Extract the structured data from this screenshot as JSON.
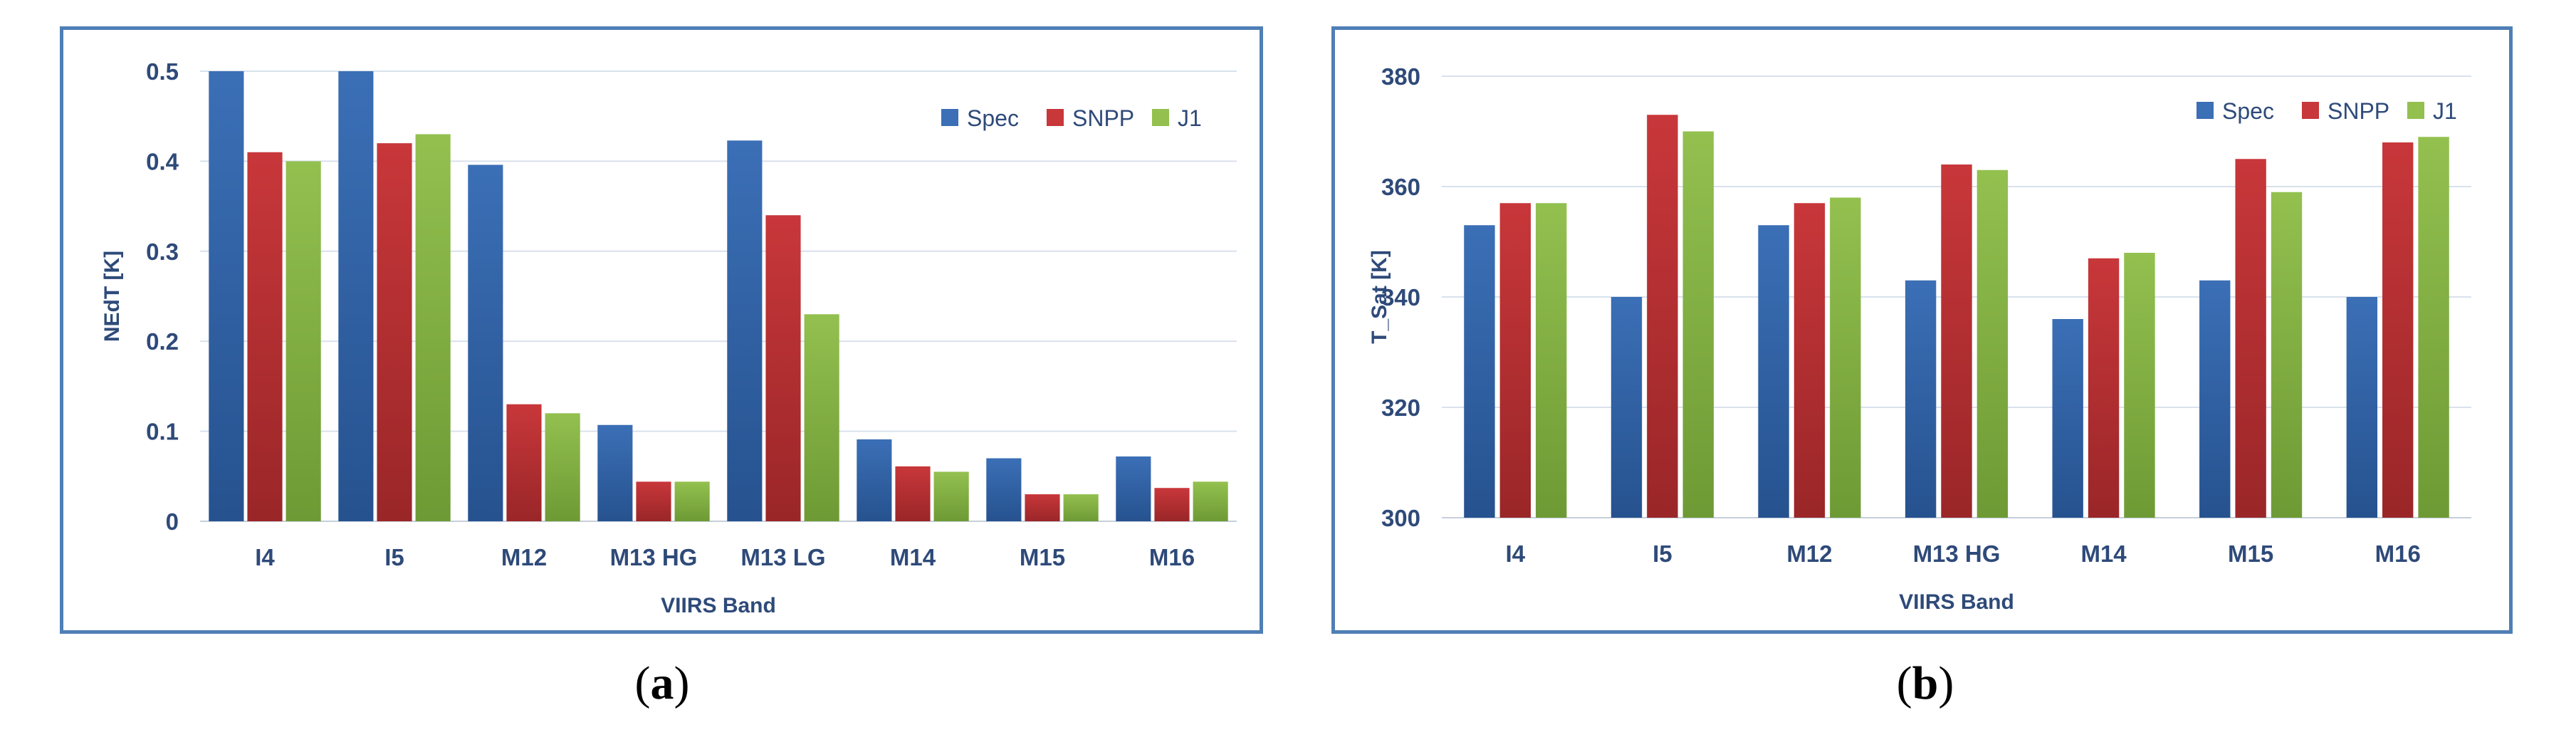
{
  "colors": {
    "spec": "#3b6fb6",
    "spec_dark": "#26528f",
    "snpp": "#c8373a",
    "snpp_dark": "#9a2628",
    "j1": "#93c04f",
    "j1_dark": "#6e9a35",
    "grid": "#d9e1ec",
    "frame": "#4f7fb5",
    "text": "#2e4a79"
  },
  "captions": {
    "a": "a",
    "b": "b"
  },
  "chart_data": [
    {
      "type": "bar",
      "title": "",
      "xlabel": "VIIRS Band",
      "ylabel": "NEdT [K]",
      "categories": [
        "I4",
        "I5",
        "M12",
        "M13 HG",
        "M13 LG",
        "M14",
        "M15",
        "M16"
      ],
      "series": [
        {
          "name": "Spec",
          "values": [
            0.5,
            0.5,
            0.396,
            0.107,
            0.423,
            0.091,
            0.07,
            0.072
          ]
        },
        {
          "name": "SNPP",
          "values": [
            0.41,
            0.42,
            0.13,
            0.044,
            0.34,
            0.061,
            0.03,
            0.037
          ]
        },
        {
          "name": "J1",
          "values": [
            0.4,
            0.43,
            0.12,
            0.044,
            0.23,
            0.055,
            0.03,
            0.044
          ]
        }
      ],
      "ylim": [
        0,
        0.5
      ],
      "yticks": [
        "0",
        "0.1",
        "0.2",
        "0.3",
        "0.4",
        "0.5"
      ],
      "ytick_values": [
        0,
        0.1,
        0.2,
        0.3,
        0.4,
        0.5
      ],
      "legend": "top-right",
      "grid": true
    },
    {
      "type": "bar",
      "title": "",
      "xlabel": "VIIRS Band",
      "ylabel": "T_Sat [K]",
      "categories": [
        "I4",
        "I5",
        "M12",
        "M13 HG",
        "M14",
        "M15",
        "M16"
      ],
      "series": [
        {
          "name": "Spec",
          "values": [
            353,
            340,
            353,
            343,
            336,
            343,
            340
          ]
        },
        {
          "name": "SNPP",
          "values": [
            357,
            373,
            357,
            364,
            347,
            365,
            368
          ]
        },
        {
          "name": "J1",
          "values": [
            357,
            370,
            358,
            363,
            348,
            359,
            369
          ]
        }
      ],
      "ylim": [
        300,
        380
      ],
      "yticks": [
        "300",
        "320",
        "340",
        "360",
        "380"
      ],
      "ytick_values": [
        300,
        320,
        340,
        360,
        380
      ],
      "legend": "top-right",
      "grid": true
    }
  ]
}
